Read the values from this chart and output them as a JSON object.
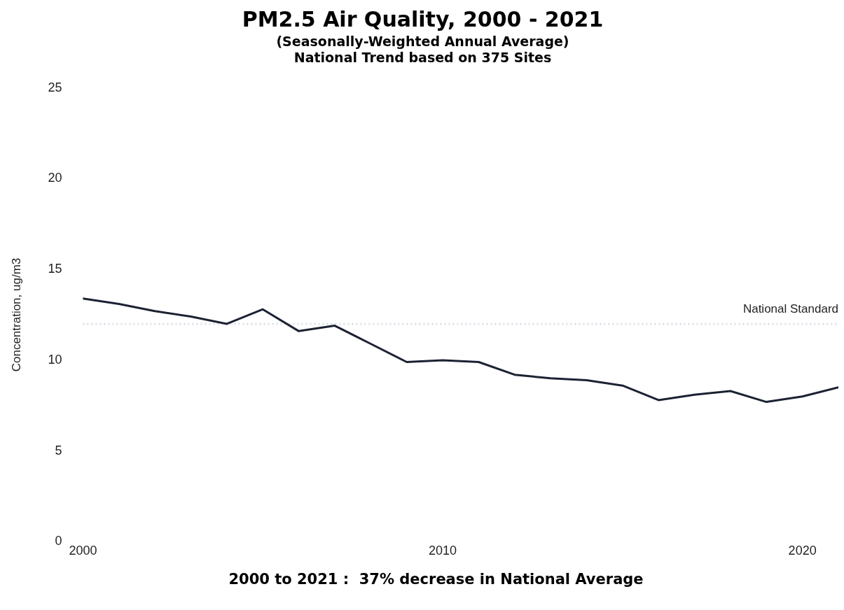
{
  "chart_data": {
    "type": "line",
    "title": "PM2.5 Air Quality, 2000 - 2021",
    "subtitle": "(Seasonally-Weighted Annual Average)\nNational Trend based on 375 Sites",
    "ylabel": "Concentration, ug/m3",
    "x": [
      2000,
      2001,
      2002,
      2003,
      2004,
      2005,
      2006,
      2007,
      2008,
      2009,
      2010,
      2011,
      2012,
      2013,
      2014,
      2015,
      2016,
      2017,
      2018,
      2019,
      2020,
      2021
    ],
    "series": [
      {
        "color": "#1b2233",
        "values": [
          13.4,
          13.1,
          12.7,
          12.4,
          12.0,
          12.8,
          11.6,
          11.9,
          10.9,
          9.9,
          10.0,
          9.9,
          9.2,
          9.0,
          8.9,
          8.6,
          7.8,
          8.1,
          8.3,
          7.7,
          8.0,
          8.5
        ]
      }
    ],
    "xlim": [
      2000,
      2021
    ],
    "xticks": [
      2000,
      2010,
      2020
    ],
    "ylim": [
      0,
      25
    ],
    "yticks": [
      0,
      5,
      10,
      15,
      20,
      25
    ],
    "ref_lines": [
      {
        "axis": "y",
        "value": 12,
        "label": "National Standard",
        "color": "#d9dee5",
        "line_style": "dotted"
      }
    ],
    "annotations": [
      "2000 to 2021 :  37% decrease in National Average"
    ],
    "grid": false,
    "legend": false,
    "marker": "none",
    "line_style": "solid"
  }
}
